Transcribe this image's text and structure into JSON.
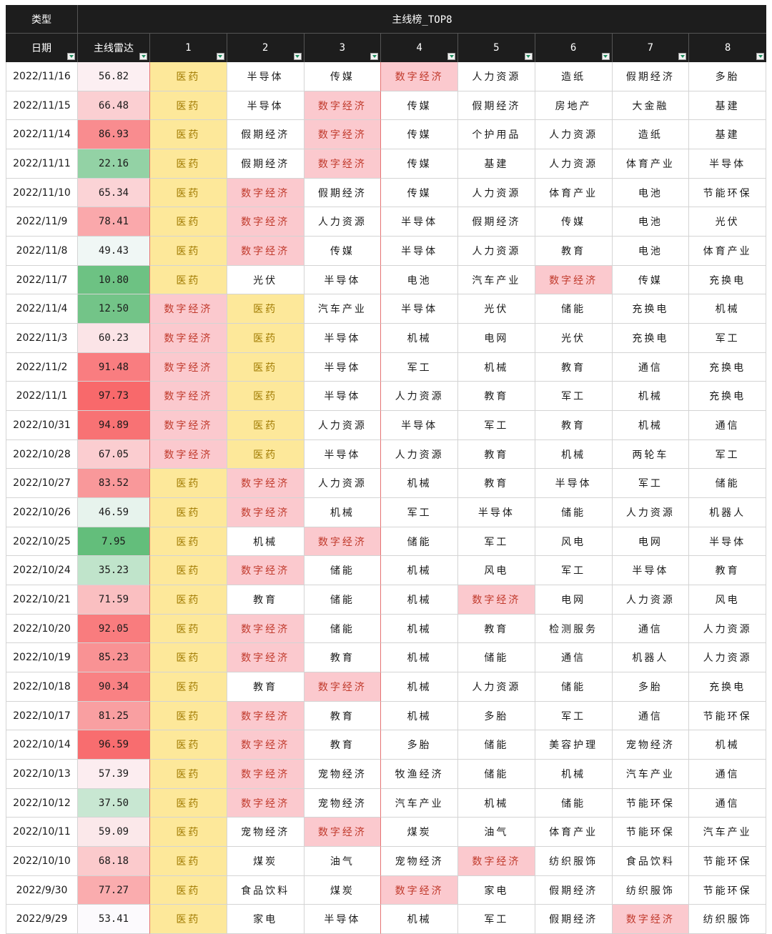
{
  "header": {
    "type_label": "类型",
    "group_label": "主线榜_TOP8",
    "date_label": "日期",
    "score_label": "主线雷达",
    "rank_labels": [
      "1",
      "2",
      "3",
      "4",
      "5",
      "6",
      "7",
      "8"
    ]
  },
  "colors": {
    "header_bg": "#1d1d1d",
    "yiyao_bg": "#fde89a",
    "yiyao_text": "#a07a00",
    "digital_bg": "#fbc9ce",
    "digital_text": "#c0392b",
    "score_high": "#f8696b",
    "score_mid": "#fcfcff",
    "score_low": "#63be7b"
  },
  "rows": [
    {
      "date": "2022/11/16",
      "score": "56.82",
      "items": [
        "医药",
        "半导体",
        "传媒",
        "数字经济",
        "人力资源",
        "造纸",
        "假期经济",
        "多胎"
      ]
    },
    {
      "date": "2022/11/15",
      "score": "66.48",
      "items": [
        "医药",
        "半导体",
        "数字经济",
        "传媒",
        "假期经济",
        "房地产",
        "大金融",
        "基建"
      ]
    },
    {
      "date": "2022/11/14",
      "score": "86.93",
      "items": [
        "医药",
        "假期经济",
        "数字经济",
        "传媒",
        "个护用品",
        "人力资源",
        "造纸",
        "基建"
      ]
    },
    {
      "date": "2022/11/11",
      "score": "22.16",
      "items": [
        "医药",
        "假期经济",
        "数字经济",
        "传媒",
        "基建",
        "人力资源",
        "体育产业",
        "半导体"
      ]
    },
    {
      "date": "2022/11/10",
      "score": "65.34",
      "items": [
        "医药",
        "数字经济",
        "假期经济",
        "传媒",
        "人力资源",
        "体育产业",
        "电池",
        "节能环保"
      ]
    },
    {
      "date": "2022/11/9",
      "score": "78.41",
      "items": [
        "医药",
        "数字经济",
        "人力资源",
        "半导体",
        "假期经济",
        "传媒",
        "电池",
        "光伏"
      ]
    },
    {
      "date": "2022/11/8",
      "score": "49.43",
      "items": [
        "医药",
        "数字经济",
        "传媒",
        "半导体",
        "人力资源",
        "教育",
        "电池",
        "体育产业"
      ]
    },
    {
      "date": "2022/11/7",
      "score": "10.80",
      "items": [
        "医药",
        "光伏",
        "半导体",
        "电池",
        "汽车产业",
        "数字经济",
        "传媒",
        "充换电"
      ]
    },
    {
      "date": "2022/11/4",
      "score": "12.50",
      "items": [
        "数字经济",
        "医药",
        "汽车产业",
        "半导体",
        "光伏",
        "储能",
        "充换电",
        "机械"
      ]
    },
    {
      "date": "2022/11/3",
      "score": "60.23",
      "items": [
        "数字经济",
        "医药",
        "半导体",
        "机械",
        "电网",
        "光伏",
        "充换电",
        "军工"
      ]
    },
    {
      "date": "2022/11/2",
      "score": "91.48",
      "items": [
        "数字经济",
        "医药",
        "半导体",
        "军工",
        "机械",
        "教育",
        "通信",
        "充换电"
      ]
    },
    {
      "date": "2022/11/1",
      "score": "97.73",
      "items": [
        "数字经济",
        "医药",
        "半导体",
        "人力资源",
        "教育",
        "军工",
        "机械",
        "充换电"
      ]
    },
    {
      "date": "2022/10/31",
      "score": "94.89",
      "items": [
        "数字经济",
        "医药",
        "人力资源",
        "半导体",
        "军工",
        "教育",
        "机械",
        "通信"
      ]
    },
    {
      "date": "2022/10/28",
      "score": "67.05",
      "items": [
        "数字经济",
        "医药",
        "半导体",
        "人力资源",
        "教育",
        "机械",
        "两轮车",
        "军工"
      ]
    },
    {
      "date": "2022/10/27",
      "score": "83.52",
      "items": [
        "医药",
        "数字经济",
        "人力资源",
        "机械",
        "教育",
        "半导体",
        "军工",
        "储能"
      ]
    },
    {
      "date": "2022/10/26",
      "score": "46.59",
      "items": [
        "医药",
        "数字经济",
        "机械",
        "军工",
        "半导体",
        "储能",
        "人力资源",
        "机器人"
      ]
    },
    {
      "date": "2022/10/25",
      "score": "7.95",
      "items": [
        "医药",
        "机械",
        "数字经济",
        "储能",
        "军工",
        "风电",
        "电网",
        "半导体"
      ]
    },
    {
      "date": "2022/10/24",
      "score": "35.23",
      "items": [
        "医药",
        "数字经济",
        "储能",
        "机械",
        "风电",
        "军工",
        "半导体",
        "教育"
      ]
    },
    {
      "date": "2022/10/21",
      "score": "71.59",
      "items": [
        "医药",
        "教育",
        "储能",
        "机械",
        "数字经济",
        "电网",
        "人力资源",
        "风电"
      ]
    },
    {
      "date": "2022/10/20",
      "score": "92.05",
      "items": [
        "医药",
        "数字经济",
        "储能",
        "机械",
        "教育",
        "检测服务",
        "通信",
        "人力资源"
      ]
    },
    {
      "date": "2022/10/19",
      "score": "85.23",
      "items": [
        "医药",
        "数字经济",
        "教育",
        "机械",
        "储能",
        "通信",
        "机器人",
        "人力资源"
      ]
    },
    {
      "date": "2022/10/18",
      "score": "90.34",
      "items": [
        "医药",
        "教育",
        "数字经济",
        "机械",
        "人力资源",
        "储能",
        "多胎",
        "充换电"
      ]
    },
    {
      "date": "2022/10/17",
      "score": "81.25",
      "items": [
        "医药",
        "数字经济",
        "教育",
        "机械",
        "多胎",
        "军工",
        "通信",
        "节能环保"
      ]
    },
    {
      "date": "2022/10/14",
      "score": "96.59",
      "items": [
        "医药",
        "数字经济",
        "教育",
        "多胎",
        "储能",
        "美容护理",
        "宠物经济",
        "机械"
      ]
    },
    {
      "date": "2022/10/13",
      "score": "57.39",
      "items": [
        "医药",
        "数字经济",
        "宠物经济",
        "牧渔经济",
        "储能",
        "机械",
        "汽车产业",
        "通信"
      ]
    },
    {
      "date": "2022/10/12",
      "score": "37.50",
      "items": [
        "医药",
        "数字经济",
        "宠物经济",
        "汽车产业",
        "机械",
        "储能",
        "节能环保",
        "通信"
      ]
    },
    {
      "date": "2022/10/11",
      "score": "59.09",
      "items": [
        "医药",
        "宠物经济",
        "数字经济",
        "煤炭",
        "油气",
        "体育产业",
        "节能环保",
        "汽车产业"
      ]
    },
    {
      "date": "2022/10/10",
      "score": "68.18",
      "items": [
        "医药",
        "煤炭",
        "油气",
        "宠物经济",
        "数字经济",
        "纺织服饰",
        "食品饮料",
        "节能环保"
      ]
    },
    {
      "date": "2022/9/30",
      "score": "77.27",
      "items": [
        "医药",
        "食品饮料",
        "煤炭",
        "数字经济",
        "家电",
        "假期经济",
        "纺织服饰",
        "节能环保"
      ]
    },
    {
      "date": "2022/9/29",
      "score": "53.41",
      "items": [
        "医药",
        "家电",
        "半导体",
        "机械",
        "军工",
        "假期经济",
        "数字经济",
        "纺织服饰"
      ]
    }
  ]
}
